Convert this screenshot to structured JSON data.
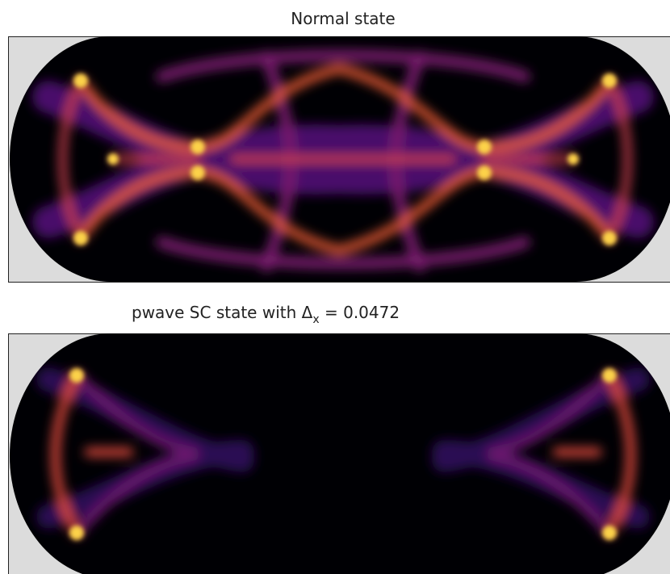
{
  "panels": [
    {
      "title": "Normal state"
    },
    {
      "title": {
        "prefix": "pwave SC state with Δ",
        "subscript": "x",
        "suffix": " = 0.0472"
      }
    }
  ]
}
